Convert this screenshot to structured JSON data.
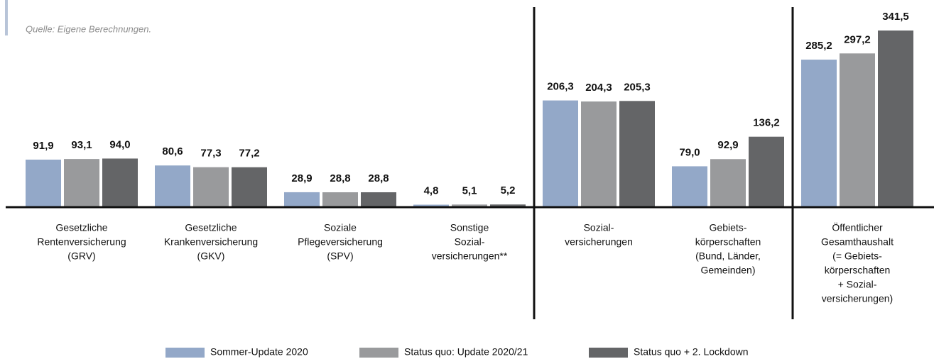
{
  "chart_data": {
    "type": "bar",
    "source": "Quelle: Eigene Berechnungen.",
    "categories": [
      [
        "Gesetzliche",
        "Rentenversicherung",
        "(GRV)"
      ],
      [
        "Gesetzliche",
        "Krankenversicherung",
        "(GKV)"
      ],
      [
        "Soziale",
        "Pflegeversicherung",
        "(SPV)"
      ],
      [
        "Sonstige",
        "Sozial-",
        "versicherungen**"
      ],
      [
        "Sozial-",
        "versicherungen"
      ],
      [
        "Gebiets-",
        "körperschaften",
        "(Bund, Länder,",
        "Gemeinden)"
      ],
      [
        "Öffentlicher",
        "Gesamthaushalt",
        "(= Gebiets-",
        "körperschaften",
        "+ Sozial-",
        "versicherungen)"
      ]
    ],
    "series": [
      {
        "name": "Sommer-Update 2020",
        "color": "#93a8c8",
        "values": [
          91.9,
          80.6,
          28.9,
          4.8,
          206.3,
          79.0,
          285.2
        ],
        "value_labels": [
          "91,9",
          "80,6",
          "28,9",
          "4,8",
          "206,3",
          "79,0",
          "285,2"
        ]
      },
      {
        "name": "Status quo: Update 2020/21",
        "color": "#999a9c",
        "values": [
          93.1,
          77.3,
          28.8,
          5.1,
          204.3,
          92.9,
          297.2
        ],
        "value_labels": [
          "93,1",
          "77,3",
          "28,8",
          "5,1",
          "204,3",
          "92,9",
          "297,2"
        ]
      },
      {
        "name": "Status quo + 2. Lockdown",
        "color": "#646567",
        "values": [
          94.0,
          77.2,
          28.8,
          5.2,
          205.3,
          136.2,
          341.5
        ],
        "value_labels": [
          "94,0",
          "77,2",
          "28,8",
          "5,2",
          "205,3",
          "136,2",
          "341,5"
        ]
      }
    ]
  }
}
